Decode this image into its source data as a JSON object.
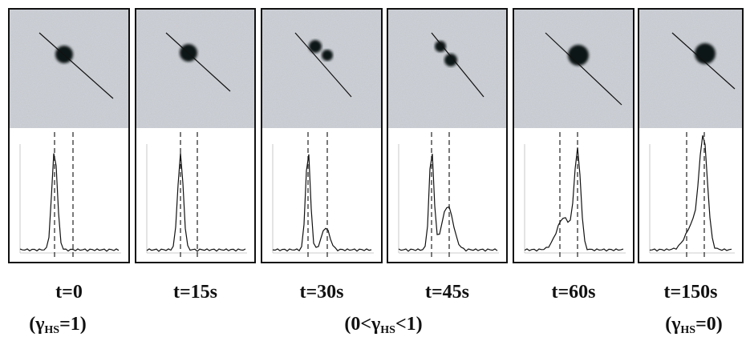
{
  "panels": [
    {
      "label": "t=0"
    },
    {
      "label": "t=15s"
    },
    {
      "label": "t=30s"
    },
    {
      "label": "t=45s"
    },
    {
      "label": "t=60s"
    },
    {
      "label": "t=150s"
    }
  ],
  "annotations": [
    {
      "prefix": "(γ",
      "sub": "HS",
      "suffix": "=1)"
    },
    {
      "prefix": "(0<γ",
      "sub": "HS",
      "suffix": "<1)"
    },
    {
      "prefix": "(γ",
      "sub": "HS",
      "suffix": "=0)"
    }
  ]
}
